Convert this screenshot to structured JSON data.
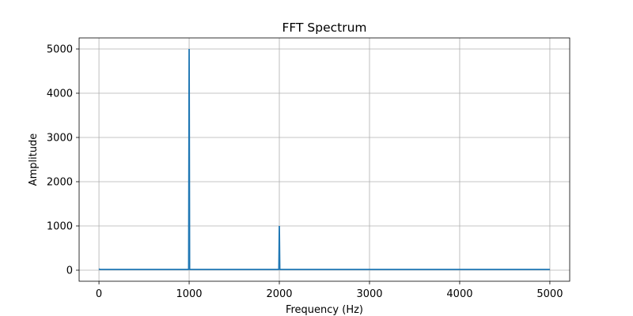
{
  "chart_data": {
    "type": "line",
    "title": "FFT Spectrum",
    "xlabel": "Frequency (Hz)",
    "ylabel": "Amplitude",
    "xlim": [
      -220,
      5220
    ],
    "ylim": [
      -250,
      5250
    ],
    "xticks": [
      0,
      1000,
      2000,
      3000,
      4000,
      5000
    ],
    "yticks": [
      0,
      1000,
      2000,
      3000,
      4000,
      5000
    ],
    "grid": true,
    "series": [
      {
        "color": "#1f77b4",
        "x": [
          0,
          10,
          500,
          990,
          995,
          1000,
          1005,
          1010,
          1500,
          1990,
          1995,
          2000,
          2005,
          2010,
          2500,
          3000,
          3500,
          4000,
          4500,
          5000
        ],
        "y": [
          30,
          15,
          15,
          15,
          18,
          5000,
          18,
          15,
          15,
          15,
          18,
          1000,
          18,
          15,
          15,
          15,
          15,
          15,
          15,
          15
        ]
      }
    ]
  }
}
